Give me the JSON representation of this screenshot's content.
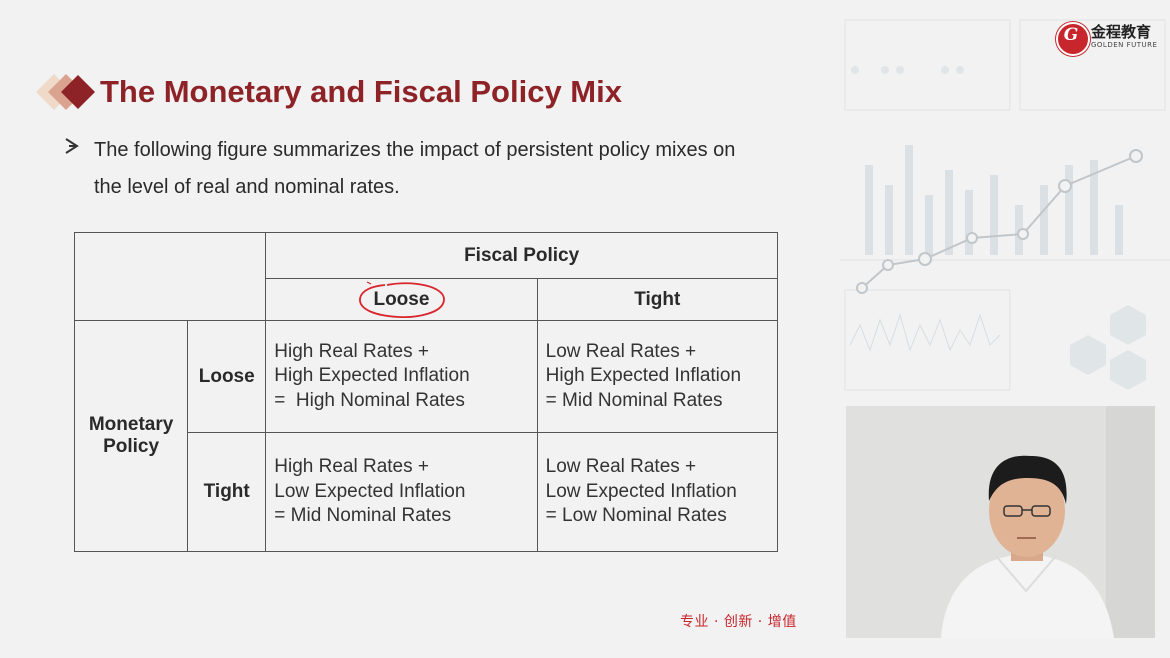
{
  "logo": {
    "chinese_name": "金程教育",
    "english_name": "GOLDEN FUTURE",
    "seal_letter": "G"
  },
  "title": "The Monetary and Fiscal Policy Mix",
  "bullet": {
    "line1": "The following figure summarizes the impact of persistent policy mixes on",
    "line2": "the level of real and nominal rates."
  },
  "table": {
    "fiscal_header": "Fiscal Policy",
    "fiscal_columns": [
      "Loose",
      "Tight"
    ],
    "monetary_header": "Monetary Policy",
    "monetary_header_lines": [
      "Monetary",
      "Policy"
    ],
    "monetary_rows": [
      "Loose",
      "Tight"
    ],
    "cells": [
      [
        [
          "High Real Rates +",
          "High Expected Inflation",
          "=  High Nominal Rates"
        ],
        [
          "Low Real Rates +",
          "High Expected Inflation",
          "= Mid Nominal Rates"
        ]
      ],
      [
        [
          "High Real Rates +",
          "Low Expected Inflation",
          "= Mid Nominal Rates"
        ],
        [
          "Low Real Rates +",
          "Low Expected Inflation",
          "= Low Nominal Rates"
        ]
      ]
    ]
  },
  "slogan": "专业 · 创新 · 增值",
  "colors": {
    "title": "#8e2327",
    "accent_red": "#c6262c",
    "annotation": "#d9252b"
  }
}
